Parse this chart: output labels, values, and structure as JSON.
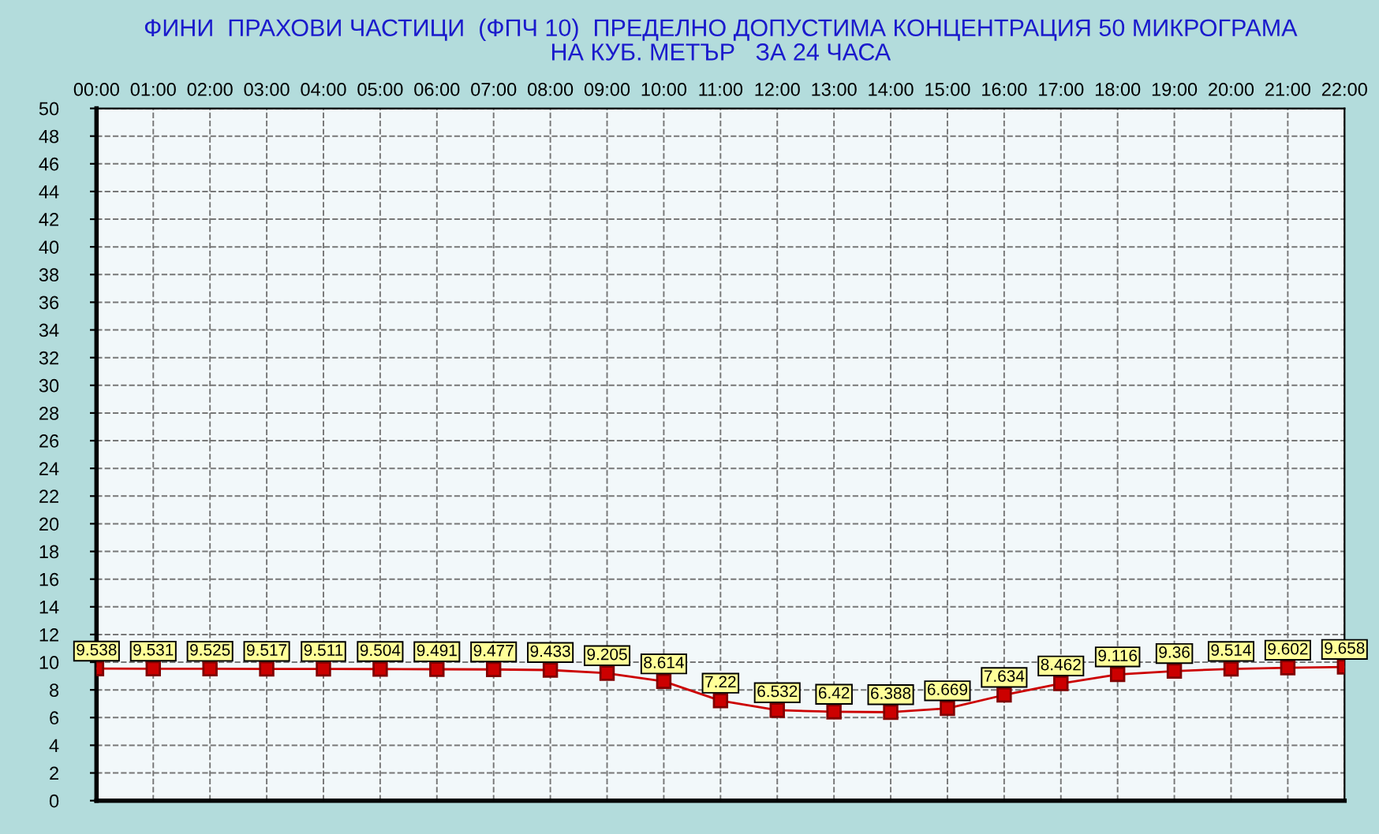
{
  "chart_data": {
    "type": "line",
    "title": "ФИНИ  ПРАХОВИ ЧАСТИЦИ  (ФПЧ 10)  ПРЕДЕЛНО ДОПУСТИМА КОНЦЕНТРАЦИЯ 50 МИКРОГРАМА\nНА КУБ. МЕТЪР   ЗА 24 ЧАСА",
    "categories": [
      "00:00",
      "01:00",
      "02:00",
      "03:00",
      "04:00",
      "05:00",
      "06:00",
      "07:00",
      "08:00",
      "09:00",
      "10:00",
      "11:00",
      "12:00",
      "13:00",
      "14:00",
      "15:00",
      "16:00",
      "17:00",
      "18:00",
      "19:00",
      "20:00",
      "21:00",
      "22:00"
    ],
    "series": [
      {
        "color": "#cc0000",
        "values": [
          9.538,
          9.531,
          9.525,
          9.517,
          9.511,
          9.504,
          9.491,
          9.477,
          9.433,
          9.205,
          8.614,
          7.22,
          6.532,
          6.42,
          6.388,
          6.669,
          7.634,
          8.462,
          9.116,
          9.36,
          9.514,
          9.602,
          9.658
        ]
      }
    ],
    "ylim": [
      0,
      50
    ],
    "yticks": [
      0,
      2,
      4,
      6,
      8,
      10,
      12,
      14,
      16,
      18,
      20,
      22,
      24,
      26,
      28,
      30,
      32,
      34,
      36,
      38,
      40,
      42,
      44,
      46,
      48,
      50
    ],
    "grid": true,
    "marker": "square",
    "line_style": "solid",
    "data_labels": true,
    "legend": false
  }
}
